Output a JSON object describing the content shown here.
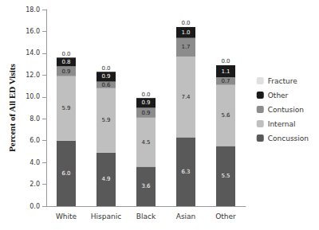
{
  "chart_data": {
    "type": "bar",
    "stacked": true,
    "data_labels": true,
    "legend": "right",
    "grid": false,
    "y_label": "Percent of All ED Visits",
    "categories": [
      "White",
      "Hispanic",
      "Black",
      "Asian",
      "Other"
    ],
    "ylim": [
      0,
      18
    ],
    "yticks": [
      {
        "value": 0,
        "label": "0.0"
      },
      {
        "value": 2,
        "label": "2.0"
      },
      {
        "value": 4,
        "label": "4.0"
      },
      {
        "value": 6,
        "label": "6.0"
      },
      {
        "value": 8,
        "label": "8.0"
      },
      {
        "value": 10,
        "label": "10.0"
      },
      {
        "value": 12,
        "label": "12.0"
      },
      {
        "value": 14,
        "label": "14.0"
      },
      {
        "value": 16,
        "label": "16.0"
      },
      {
        "value": 18,
        "label": "18.0"
      }
    ],
    "series": [
      {
        "name": "Concussion",
        "color": "#595959",
        "values": [
          6.0,
          4.9,
          3.6,
          6.3,
          5.5
        ],
        "value_labels": [
          "6.0",
          "4.9",
          "3.6",
          "6.3",
          "5.5"
        ]
      },
      {
        "name": "Internal",
        "color": "#bfbfbf",
        "values": [
          5.9,
          5.9,
          4.5,
          7.4,
          5.6
        ],
        "value_labels": [
          "5.9",
          "5.9",
          "4.5",
          "7.4",
          "5.6"
        ]
      },
      {
        "name": "Contusion",
        "color": "#8c8c8c",
        "values": [
          0.9,
          0.6,
          0.9,
          1.7,
          0.7
        ],
        "value_labels": [
          "0.9",
          "0.6",
          "0.9",
          "1.7",
          "0.7"
        ]
      },
      {
        "name": "Other",
        "color": "#1a1a1a",
        "values": [
          0.8,
          0.9,
          0.9,
          1.0,
          1.1
        ],
        "value_labels": [
          "0.8",
          "0.9",
          "0.9",
          "1.0",
          "1.1"
        ]
      },
      {
        "name": "Fracture",
        "color": "#e0e0e0",
        "values": [
          0.0,
          0.0,
          0.0,
          0.0,
          0.0
        ],
        "value_labels": [
          "0.0",
          "0.0",
          "0.0",
          "0.0",
          "0.0"
        ]
      }
    ]
  }
}
